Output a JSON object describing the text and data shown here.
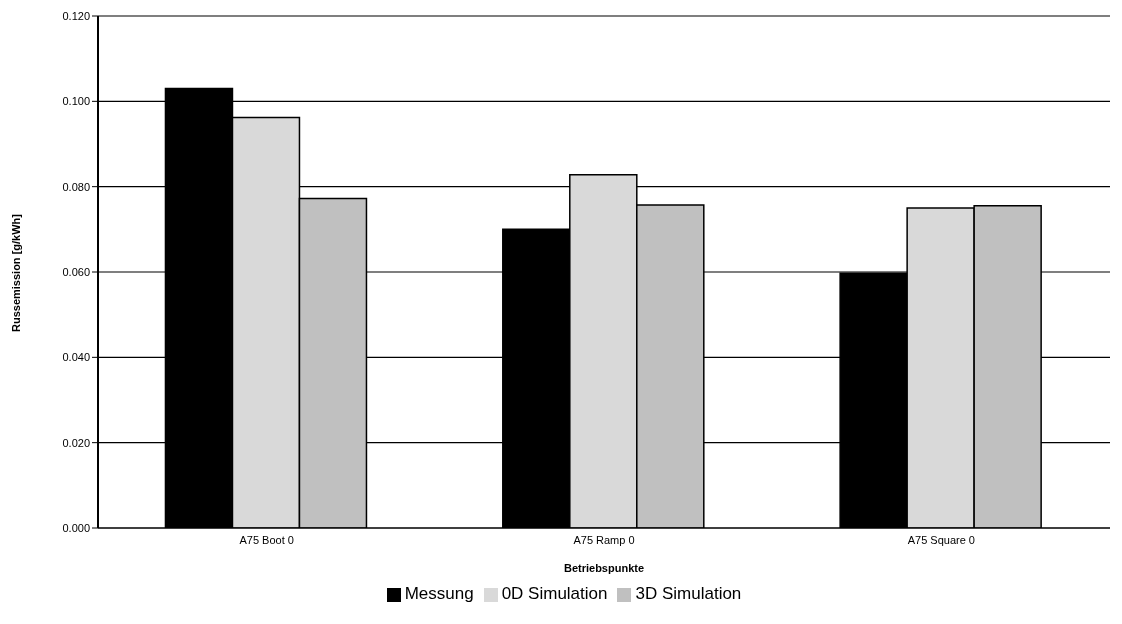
{
  "chart_data": {
    "type": "bar",
    "xlabel": "Betriebspunkte",
    "ylabel": "Russemission [g/kWh]",
    "categories": [
      "A75 Boot 0",
      "A75 Ramp 0",
      "A75 Square 0"
    ],
    "series": [
      {
        "name": "Messung",
        "color": "#000000",
        "values": [
          0.103,
          0.07,
          0.0597
        ]
      },
      {
        "name": "0D Simulation",
        "color": "#d9d9d9",
        "values": [
          0.0962,
          0.0828,
          0.075
        ]
      },
      {
        "name": "3D Simulation",
        "color": "#c0c0c0",
        "values": [
          0.0772,
          0.0757,
          0.0755
        ]
      }
    ],
    "ylim": [
      0,
      0.12
    ],
    "yticks": [
      {
        "value": 0,
        "label": "0.000"
      },
      {
        "value": 0.02,
        "label": "0.020"
      },
      {
        "value": 0.04,
        "label": "0.040"
      },
      {
        "value": 0.06,
        "label": "0.060"
      },
      {
        "value": 0.08,
        "label": "0.080"
      },
      {
        "value": 0.1,
        "label": "0.100"
      },
      {
        "value": 0.12,
        "label": "0.120"
      }
    ],
    "grid": "y",
    "legend": "bottom"
  }
}
